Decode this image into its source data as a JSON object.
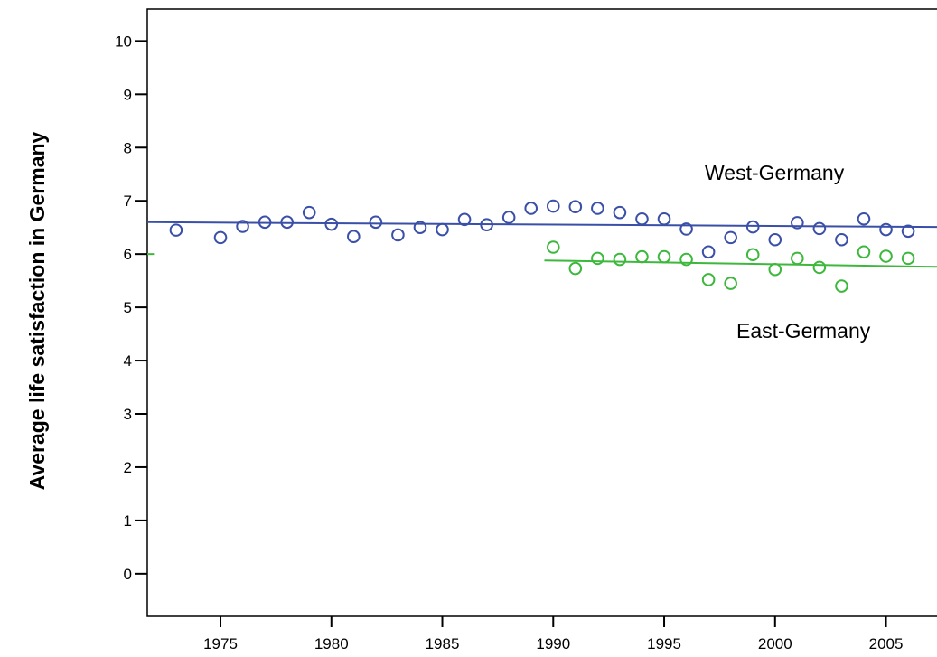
{
  "chart_data": {
    "type": "scatter",
    "title": "",
    "xlabel": "",
    "ylabel": "Average life satisfaction in Germany",
    "xlim": [
      1971.7,
      2007.3
    ],
    "ylim": [
      -0.8,
      10.6
    ],
    "x_ticks": [
      1975,
      1980,
      1985,
      1990,
      1995,
      2000,
      2005
    ],
    "y_ticks": [
      0,
      1,
      2,
      3,
      4,
      5,
      6,
      7,
      8,
      9,
      10
    ],
    "grid": false,
    "legend": "none",
    "series": [
      {
        "name": "West-Germany",
        "color": "#3a4fa8",
        "points": [
          [
            1973,
            6.45
          ],
          [
            1975,
            6.31
          ],
          [
            1976,
            6.52
          ],
          [
            1977,
            6.6
          ],
          [
            1978,
            6.6
          ],
          [
            1979,
            6.78
          ],
          [
            1980,
            6.56
          ],
          [
            1981,
            6.33
          ],
          [
            1982,
            6.6
          ],
          [
            1983,
            6.36
          ],
          [
            1984,
            6.5
          ],
          [
            1985,
            6.46
          ],
          [
            1986,
            6.65
          ],
          [
            1987,
            6.55
          ],
          [
            1988,
            6.69
          ],
          [
            1989,
            6.86
          ],
          [
            1990,
            6.9
          ],
          [
            1991,
            6.89
          ],
          [
            1992,
            6.86
          ],
          [
            1993,
            6.78
          ],
          [
            1994,
            6.66
          ],
          [
            1995,
            6.66
          ],
          [
            1996,
            6.47
          ],
          [
            1997,
            6.04
          ],
          [
            1998,
            6.31
          ],
          [
            1999,
            6.51
          ],
          [
            2000,
            6.27
          ],
          [
            2001,
            6.59
          ],
          [
            2002,
            6.48
          ],
          [
            2003,
            6.27
          ],
          [
            2004,
            6.66
          ],
          [
            2005,
            6.46
          ],
          [
            2006,
            6.43
          ]
        ],
        "trend": {
          "x": [
            1971.7,
            2007.3
          ],
          "y": [
            6.6,
            6.51
          ]
        }
      },
      {
        "name": "East-Germany",
        "color": "#3db83d",
        "points": [
          [
            1990,
            6.13
          ],
          [
            1991,
            5.73
          ],
          [
            1992,
            5.92
          ],
          [
            1993,
            5.9
          ],
          [
            1994,
            5.95
          ],
          [
            1995,
            5.95
          ],
          [
            1996,
            5.9
          ],
          [
            1997,
            5.52
          ],
          [
            1998,
            5.45
          ],
          [
            1999,
            5.99
          ],
          [
            2000,
            5.71
          ],
          [
            2001,
            5.92
          ],
          [
            2002,
            5.75
          ],
          [
            2003,
            5.4
          ],
          [
            2004,
            6.04
          ],
          [
            2005,
            5.96
          ],
          [
            2006,
            5.92
          ]
        ],
        "trend": {
          "x": [
            1989.6,
            2007.3
          ],
          "y": [
            5.88,
            5.76
          ]
        },
        "stub": {
          "x": [
            1971.7,
            1972.0
          ],
          "y": [
            6.0,
            6.0
          ]
        }
      }
    ],
    "annotations": [
      {
        "text": "West-Germany",
        "series": "West-Germany"
      },
      {
        "text": "East-Germany",
        "series": "East-Germany"
      }
    ]
  }
}
